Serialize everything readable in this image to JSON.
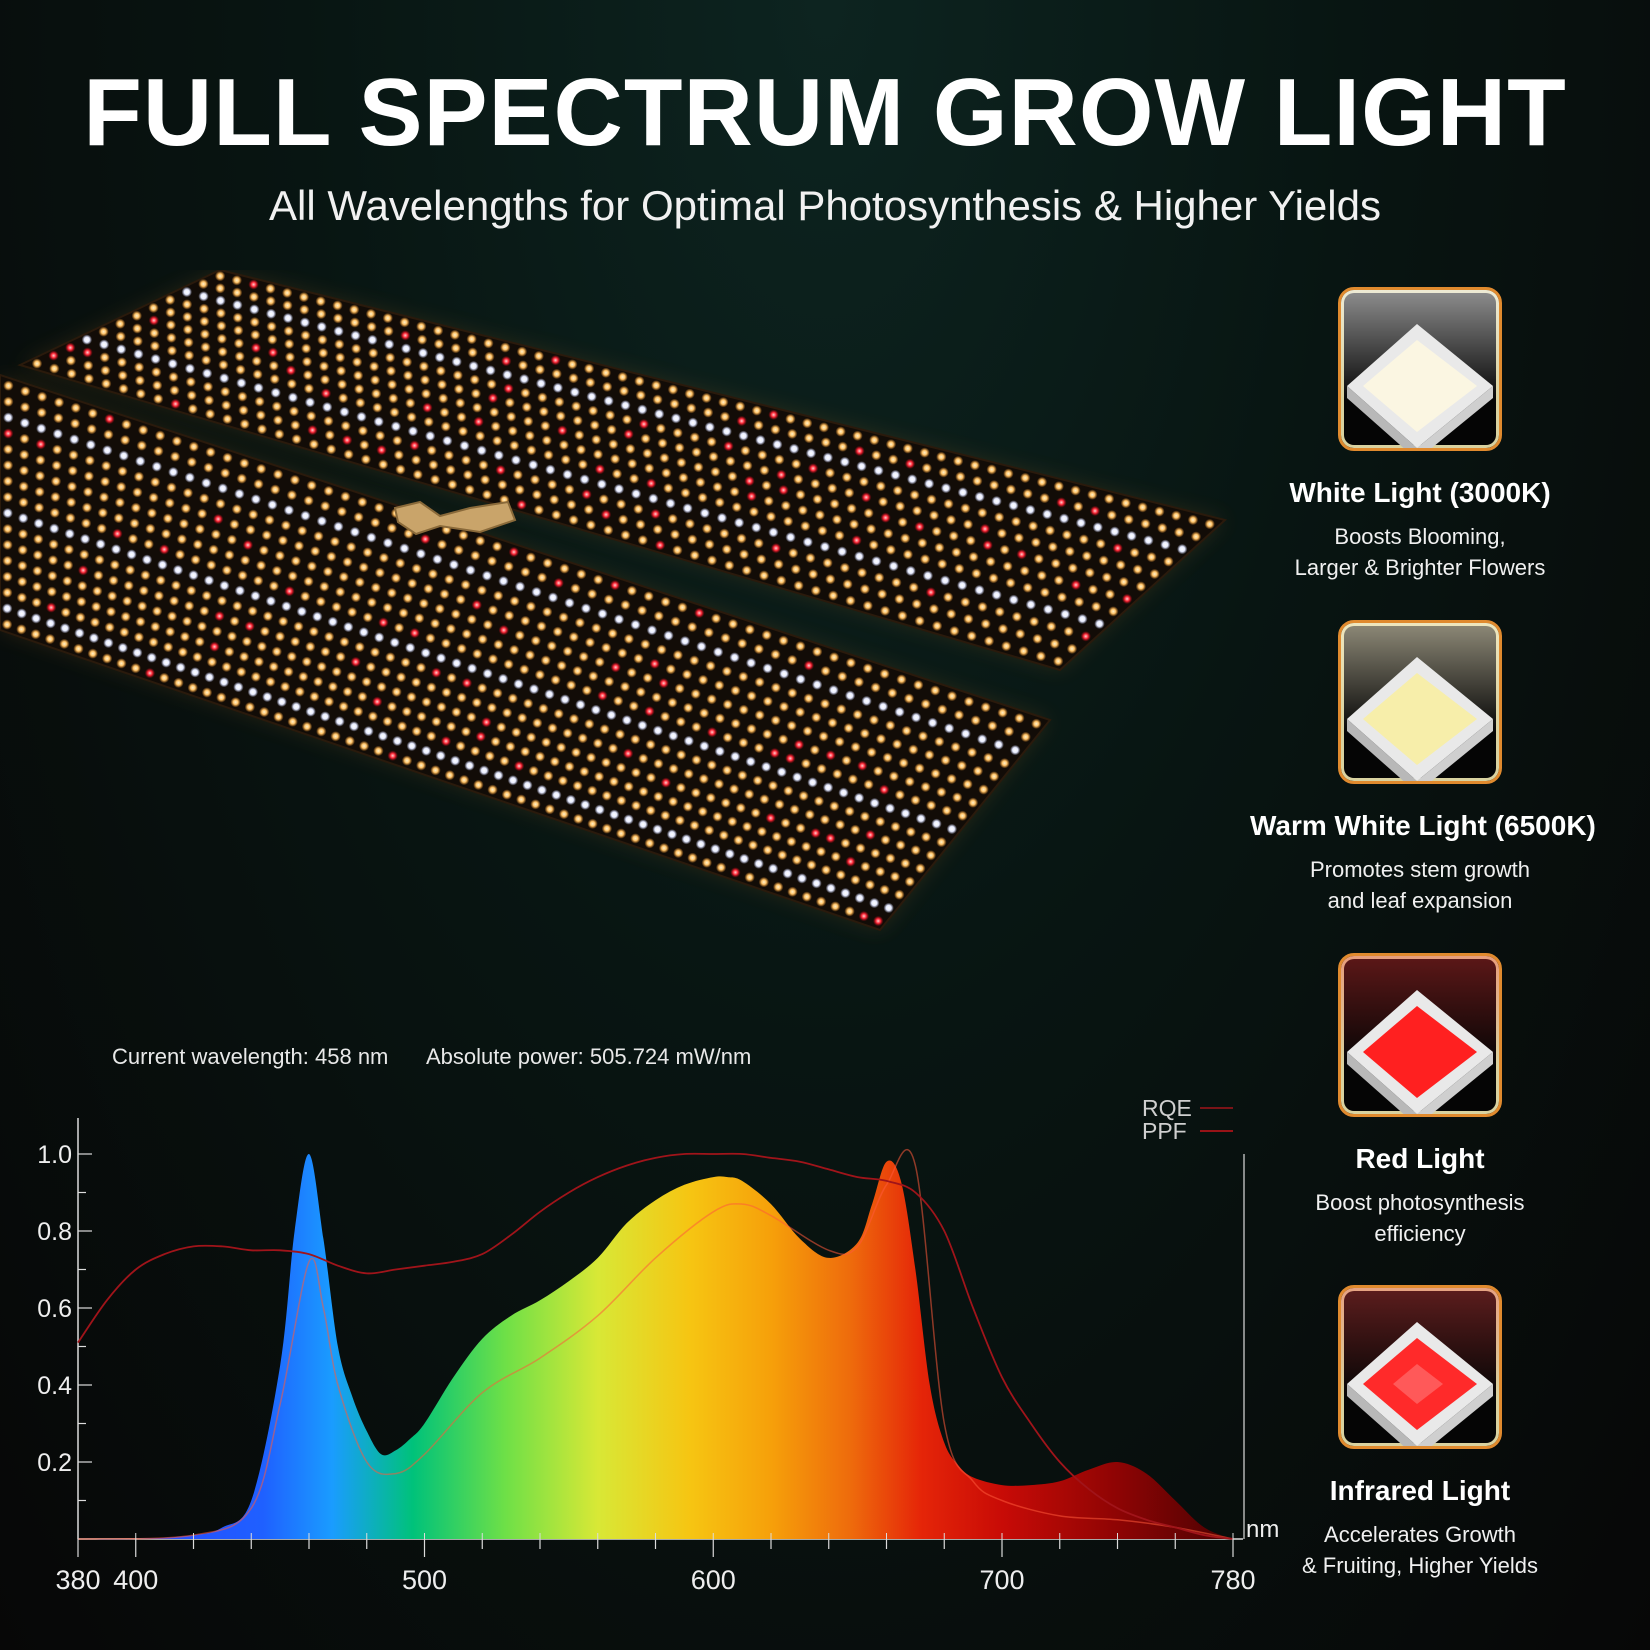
{
  "header": {
    "title": "FULL SPECTRUM GROW LIGHT",
    "subtitle": "All Wavelengths for Optimal Photosynthesis & Higher Yields"
  },
  "readouts": {
    "wavelength": "Current wavelength: 458 nm",
    "power": "Absolute power: 505.724 mW/nm"
  },
  "cards": [
    {
      "title": "White Light (3000K)",
      "desc": "Boosts Blooming,\nLarger & Brighter Flowers",
      "led_color": "#fbf6e2",
      "glow": "#ffffff"
    },
    {
      "title": "Warm White Light (6500K)",
      "desc": "Promotes stem growth\nand leaf expansion",
      "led_color": "#f7eeaa",
      "glow": "#fff7d6"
    },
    {
      "title": "Red Light",
      "desc": "Boost photosynthesis\nefficiency",
      "led_color": "#ff2020",
      "glow": "#ff3a3a"
    },
    {
      "title": "Infrared Light",
      "desc": "Accelerates Growth\n& Fruiting, Higher Yields",
      "led_color": "#ff2a2a",
      "glow": "#ff4a4a"
    }
  ],
  "chart_data": {
    "type": "area",
    "xlabel": "nm",
    "xlim": [
      380,
      780
    ],
    "ylim": [
      0,
      1.0
    ],
    "x_ticks": [
      380,
      400,
      500,
      600,
      700,
      780
    ],
    "y_ticks": [
      0.2,
      0.4,
      0.6,
      0.8,
      1.0
    ],
    "y_tick_labels": [
      "0.2",
      "0.4",
      "0.6",
      "0.8",
      "1.0"
    ],
    "legend": [
      "RQE",
      "PPF"
    ],
    "legend_position": "top-right",
    "series": [
      {
        "name": "",
        "kind": "spectrum",
        "x": [
          380,
          400,
          420,
          430,
          440,
          450,
          455,
          460,
          465,
          470,
          475,
          480,
          485,
          490,
          495,
          500,
          510,
          520,
          530,
          540,
          550,
          560,
          570,
          580,
          590,
          600,
          605,
          610,
          620,
          630,
          640,
          650,
          655,
          660,
          665,
          670,
          675,
          680,
          685,
          690,
          700,
          710,
          720,
          730,
          740,
          750,
          760,
          770,
          780
        ],
        "y": [
          0.0,
          0.0,
          0.01,
          0.03,
          0.1,
          0.45,
          0.8,
          1.0,
          0.78,
          0.5,
          0.37,
          0.28,
          0.22,
          0.23,
          0.26,
          0.3,
          0.42,
          0.52,
          0.58,
          0.62,
          0.67,
          0.73,
          0.82,
          0.88,
          0.92,
          0.94,
          0.94,
          0.93,
          0.87,
          0.78,
          0.73,
          0.77,
          0.87,
          0.98,
          0.93,
          0.7,
          0.4,
          0.25,
          0.19,
          0.16,
          0.14,
          0.14,
          0.15,
          0.18,
          0.2,
          0.17,
          0.1,
          0.03,
          0.0
        ]
      },
      {
        "name": "RQE",
        "x": [
          380,
          390,
          400,
          410,
          420,
          430,
          440,
          450,
          460,
          470,
          480,
          490,
          500,
          510,
          520,
          530,
          540,
          550,
          560,
          570,
          580,
          590,
          600,
          610,
          620,
          630,
          640,
          650,
          660,
          670,
          680,
          690,
          700,
          710,
          720,
          730,
          740,
          750,
          760,
          770,
          780
        ],
        "y": [
          0.51,
          0.62,
          0.7,
          0.74,
          0.76,
          0.76,
          0.75,
          0.75,
          0.74,
          0.71,
          0.69,
          0.7,
          0.71,
          0.72,
          0.74,
          0.79,
          0.85,
          0.9,
          0.94,
          0.97,
          0.99,
          1.0,
          1.0,
          1.0,
          0.99,
          0.98,
          0.96,
          0.94,
          0.93,
          0.9,
          0.8,
          0.6,
          0.42,
          0.3,
          0.2,
          0.13,
          0.08,
          0.05,
          0.03,
          0.01,
          0.0
        ]
      },
      {
        "name": "PPF",
        "x": [
          380,
          420,
          440,
          450,
          460,
          465,
          470,
          480,
          490,
          500,
          520,
          540,
          560,
          580,
          600,
          610,
          620,
          640,
          650,
          660,
          670,
          680,
          690,
          700,
          720,
          740,
          760,
          780
        ],
        "y": [
          0.0,
          0.01,
          0.08,
          0.35,
          0.72,
          0.6,
          0.4,
          0.2,
          0.17,
          0.22,
          0.38,
          0.47,
          0.58,
          0.73,
          0.85,
          0.87,
          0.84,
          0.75,
          0.76,
          0.92,
          0.97,
          0.3,
          0.15,
          0.1,
          0.06,
          0.05,
          0.03,
          0.0
        ]
      }
    ]
  }
}
